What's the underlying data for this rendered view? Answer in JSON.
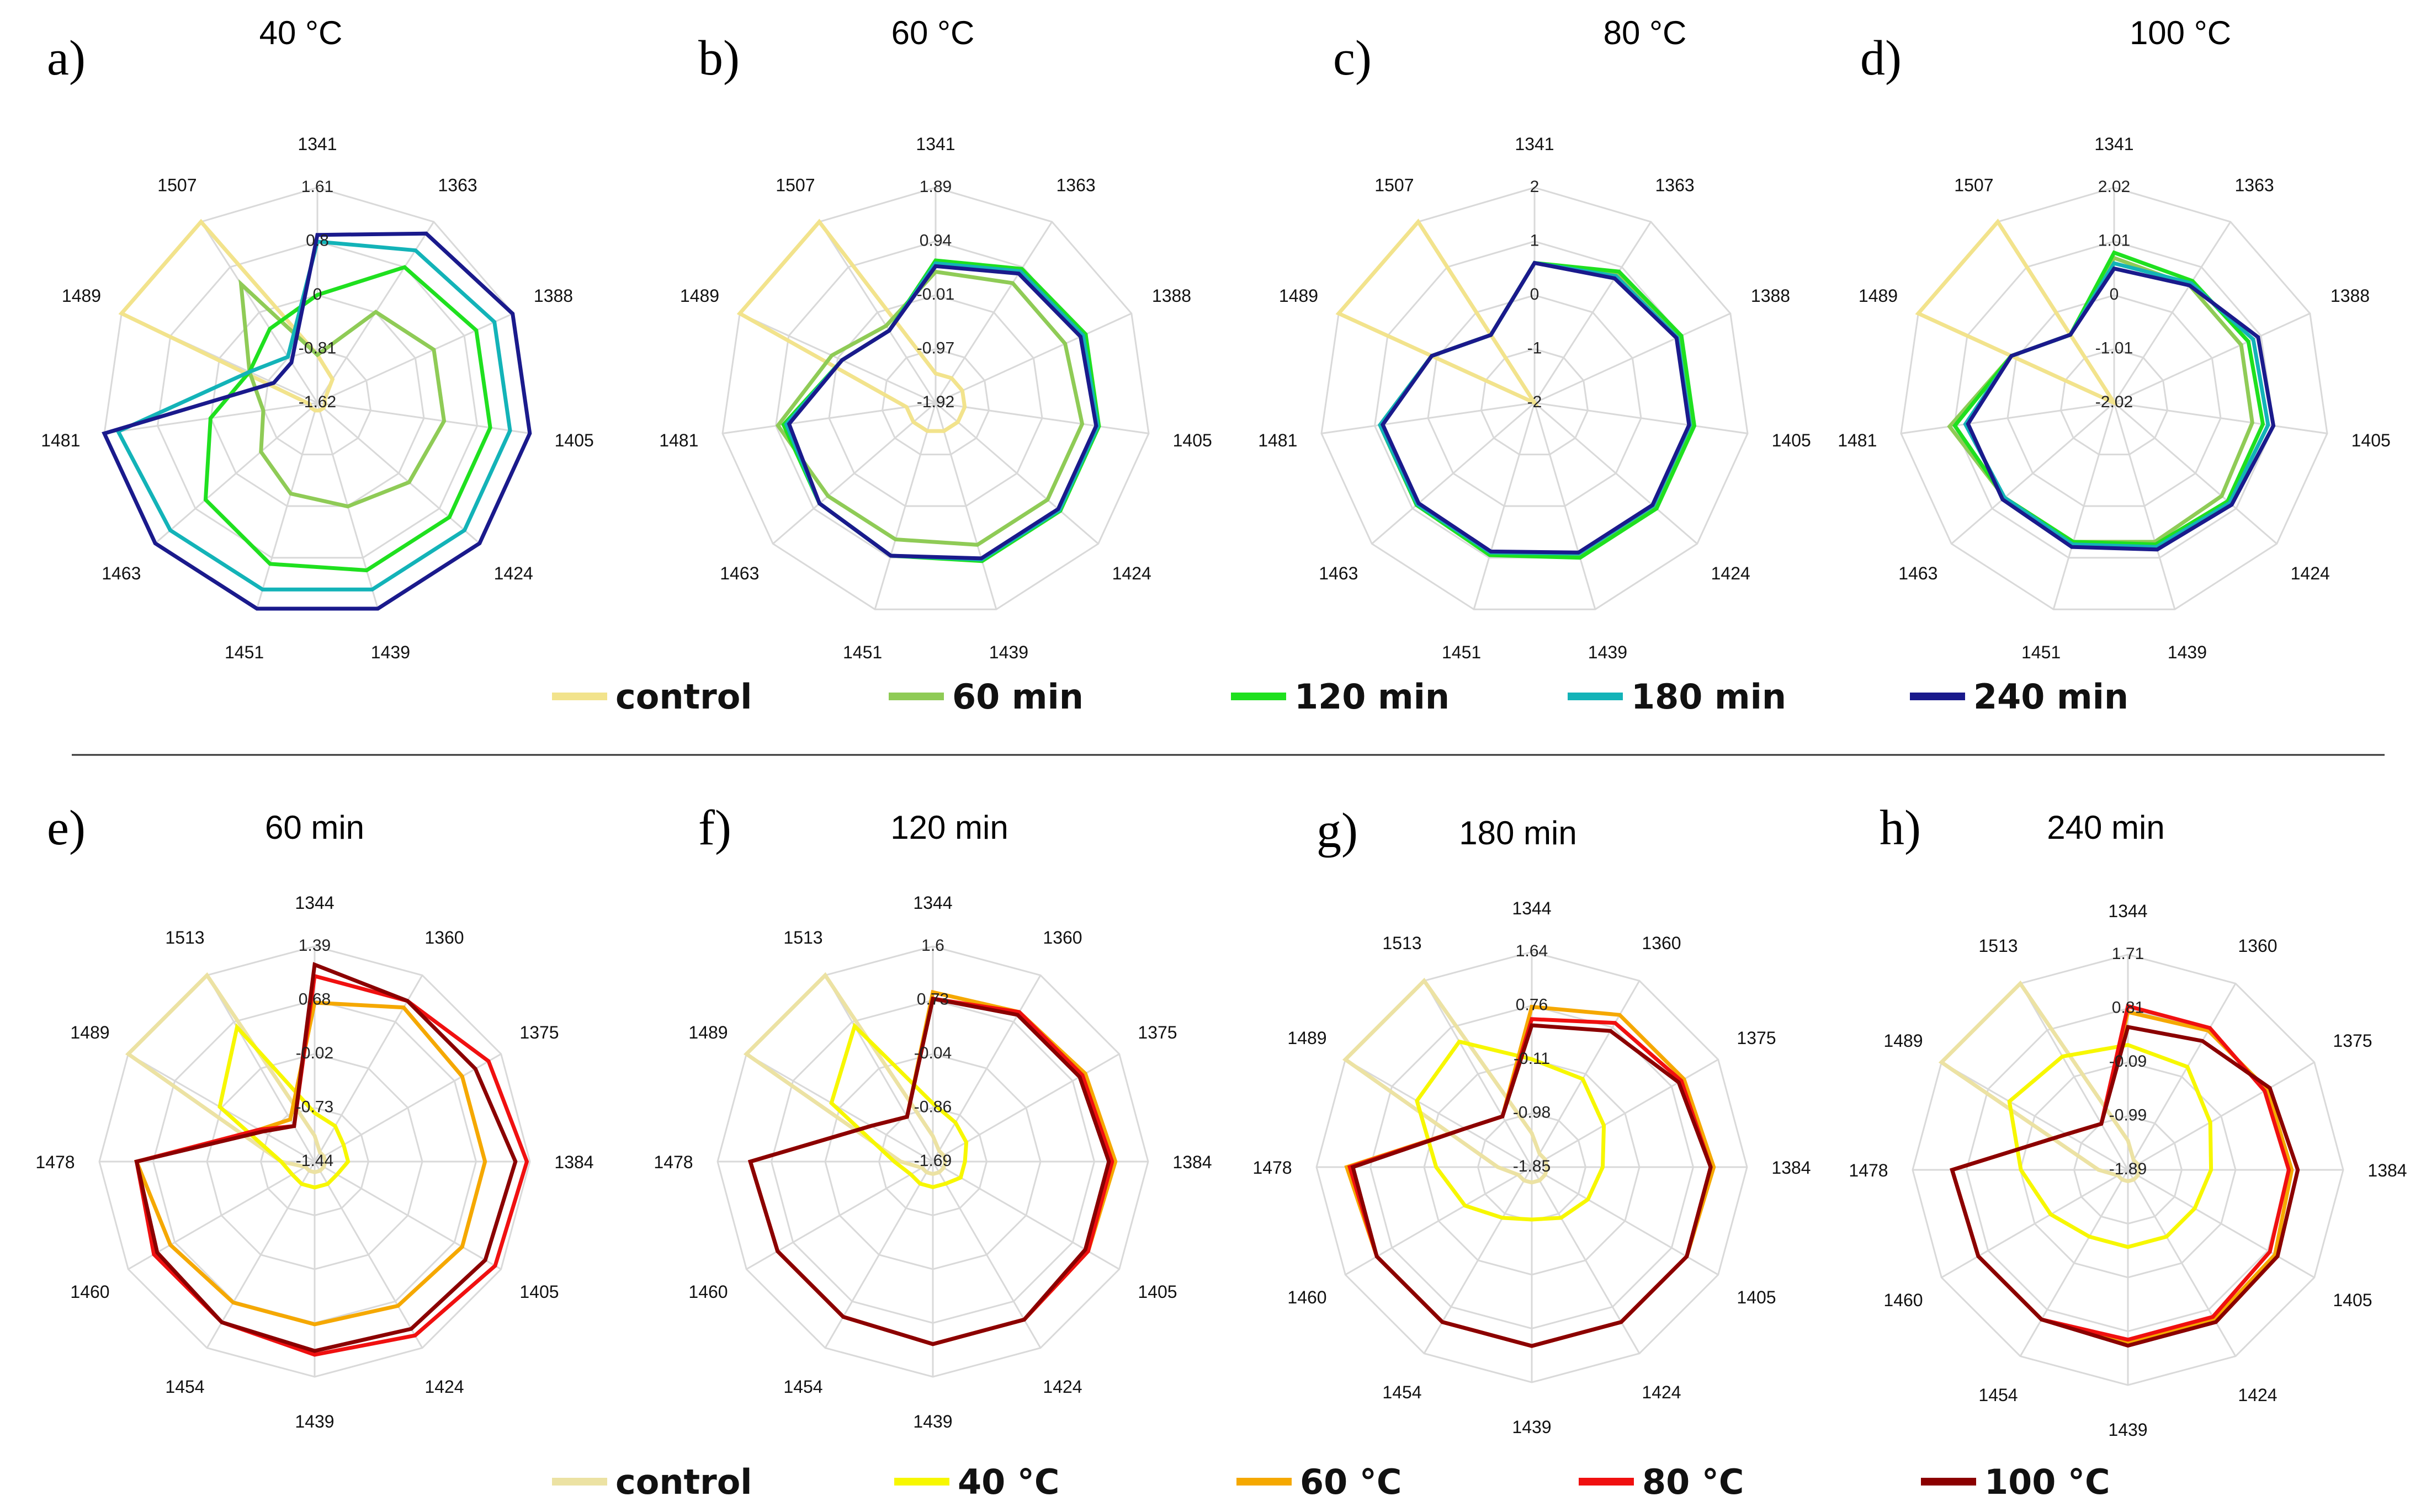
{
  "colors": {
    "grid": "#d9d9d9",
    "top_series": [
      "#f2e38c",
      "#8fcb56",
      "#1fe01f",
      "#13b3b8",
      "#1a1a8c"
    ],
    "bottom_series": [
      "#ece2a3",
      "#f7f700",
      "#f5a800",
      "#f01010",
      "#8b0000"
    ]
  },
  "legend_top": [
    "control",
    "60 min",
    "120 min",
    "180 min",
    "240 min"
  ],
  "legend_bottom": [
    "control",
    "40 °C",
    "60 °C",
    "80 °C",
    "100 °C"
  ],
  "chart_data": [
    {
      "type": "radar",
      "panel": "a)",
      "title": "40 °C",
      "categories": [
        "1341",
        "1363",
        "1388",
        "1405",
        "1424",
        "1439",
        "1451",
        "1463",
        "1481",
        "1489",
        "1507"
      ],
      "ticks": [
        "1.61",
        "0.8",
        "0",
        "-0.81",
        "-1.62"
      ],
      "ylim": [
        -1.62,
        1.61
      ],
      "series": [
        {
          "name": "control",
          "values": [
            -0.9,
            -1.2,
            -1.5,
            -1.5,
            -1.5,
            -1.5,
            -1.5,
            -1.5,
            -1.5,
            1.61,
            1.61
          ]
        },
        {
          "name": "60 min",
          "values": [
            -0.9,
            0.0,
            0.3,
            0.3,
            0.2,
            0.0,
            -0.2,
            -0.5,
            -0.8,
            -0.5,
            0.5
          ]
        },
        {
          "name": "120 min",
          "values": [
            0.0,
            0.8,
            1.0,
            1.0,
            1.0,
            1.0,
            0.9,
            0.6,
            0.0,
            -0.5,
            -0.3
          ]
        },
        {
          "name": "180 min",
          "values": [
            0.8,
            1.1,
            1.3,
            1.3,
            1.3,
            1.3,
            1.3,
            1.3,
            1.4,
            -0.5,
            -0.8
          ]
        },
        {
          "name": "240 min",
          "values": [
            0.9,
            1.4,
            1.6,
            1.6,
            1.6,
            1.6,
            1.6,
            1.6,
            1.61,
            -0.9,
            -0.9
          ]
        }
      ]
    },
    {
      "type": "radar",
      "panel": "b)",
      "title": "60 °C",
      "categories": [
        "1341",
        "1363",
        "1388",
        "1405",
        "1424",
        "1439",
        "1451",
        "1463",
        "1481",
        "1489",
        "1507"
      ],
      "ticks": [
        "1.89",
        "0.94",
        "-0.01",
        "-0.97",
        "-1.92"
      ],
      "ylim": [
        -1.92,
        1.89
      ],
      "series": [
        {
          "name": "control",
          "values": [
            -1.4,
            -1.4,
            -1.4,
            -1.4,
            -1.4,
            -1.4,
            -1.4,
            -1.4,
            -1.4,
            1.89,
            1.89
          ]
        },
        {
          "name": "60 min",
          "values": [
            0.4,
            0.6,
            0.6,
            0.7,
            0.7,
            0.7,
            0.6,
            0.6,
            0.9,
            0.1,
            -0.3
          ]
        },
        {
          "name": "120 min",
          "values": [
            0.6,
            0.9,
            1.0,
            1.0,
            1.0,
            1.0,
            0.9,
            0.8,
            0.8,
            -0.1,
            -0.4
          ]
        },
        {
          "name": "180 min",
          "values": [
            0.55,
            0.85,
            0.95,
            0.98,
            0.98,
            0.97,
            0.9,
            0.8,
            0.75,
            -0.1,
            -0.4
          ]
        },
        {
          "name": "240 min",
          "values": [
            0.5,
            0.8,
            0.9,
            0.95,
            0.95,
            0.95,
            0.9,
            0.8,
            0.7,
            -0.1,
            -0.4
          ]
        }
      ]
    },
    {
      "type": "radar",
      "panel": "c)",
      "title": "80 °C",
      "categories": [
        "1341",
        "1363",
        "1388",
        "1405",
        "1424",
        "1439",
        "1451",
        "1463",
        "1481",
        "1489",
        "1507"
      ],
      "ticks": [
        "2",
        "1",
        "0",
        "-1",
        "-2"
      ],
      "ylim": [
        -2,
        2
      ],
      "series": [
        {
          "name": "control",
          "values": [
            -2,
            -2,
            -2,
            -2,
            -2,
            -2,
            -2,
            -2,
            -2,
            2,
            2
          ]
        },
        {
          "name": "60 min",
          "values": [
            0.6,
            0.85,
            0.95,
            0.95,
            0.95,
            0.95,
            0.9,
            0.9,
            0.9,
            0.1,
            -0.5
          ]
        },
        {
          "name": "120 min",
          "values": [
            0.6,
            0.9,
            1.0,
            1.0,
            1.0,
            1.0,
            0.95,
            0.9,
            0.9,
            0.1,
            -0.5
          ]
        },
        {
          "name": "180 min",
          "values": [
            0.6,
            0.8,
            0.92,
            0.92,
            0.92,
            0.92,
            0.9,
            0.88,
            0.9,
            0.1,
            -0.5
          ]
        },
        {
          "name": "240 min",
          "values": [
            0.6,
            0.75,
            0.9,
            0.9,
            0.9,
            0.9,
            0.88,
            0.85,
            0.85,
            0.1,
            -0.5
          ]
        }
      ]
    },
    {
      "type": "radar",
      "panel": "d)",
      "title": "100 °C",
      "categories": [
        "1341",
        "1363",
        "1388",
        "1405",
        "1424",
        "1439",
        "1451",
        "1463",
        "1481",
        "1489",
        "1507"
      ],
      "ticks": [
        "2.02",
        "1.01",
        "0",
        "-1.01",
        "-2.02"
      ],
      "ylim": [
        -2.02,
        2.02
      ],
      "series": [
        {
          "name": "control",
          "values": [
            -2.02,
            -2.02,
            -2.02,
            -2.02,
            -2.02,
            -2.02,
            -2.02,
            -2.02,
            -2.02,
            2.02,
            2.02
          ]
        },
        {
          "name": "60 min",
          "values": [
            0.7,
            0.6,
            0.6,
            0.6,
            0.65,
            0.7,
            0.7,
            0.7,
            1.1,
            0.1,
            -0.5
          ]
        },
        {
          "name": "120 min",
          "values": [
            0.8,
            0.7,
            0.75,
            0.8,
            0.8,
            0.75,
            0.7,
            0.7,
            1.0,
            0.1,
            -0.5
          ]
        },
        {
          "name": "180 min",
          "values": [
            0.6,
            0.65,
            0.85,
            0.9,
            0.85,
            0.8,
            0.75,
            0.7,
            0.8,
            0.1,
            -0.5
          ]
        },
        {
          "name": "240 min",
          "values": [
            0.5,
            0.6,
            0.95,
            1.0,
            0.9,
            0.85,
            0.8,
            0.75,
            0.75,
            0.1,
            -0.5
          ]
        }
      ]
    },
    {
      "type": "radar",
      "panel": "e)",
      "title": "60 min",
      "categories": [
        "1344",
        "1360",
        "1375",
        "1384",
        "1405",
        "1424",
        "1439",
        "1454",
        "1460",
        "1478",
        "1489",
        "1513"
      ],
      "ticks": [
        "1.39",
        "0.68",
        "-0.02",
        "-0.73",
        "-1.44"
      ],
      "ylim": [
        -1.44,
        1.39
      ],
      "series": [
        {
          "name": "control",
          "values": [
            -1.1,
            -1.3,
            -1.3,
            -1.3,
            -1.3,
            -1.3,
            -1.3,
            -1.3,
            -1.3,
            -1.0,
            1.39,
            1.39
          ]
        },
        {
          "name": "40 °C",
          "values": [
            -0.8,
            -0.9,
            -1.0,
            -1.0,
            -1.1,
            -1.1,
            -1.1,
            -1.1,
            -1.1,
            -1.0,
            0.0,
            0.6
          ]
        },
        {
          "name": "60 °C",
          "values": [
            0.65,
            0.9,
            0.8,
            0.8,
            0.8,
            0.75,
            0.7,
            0.7,
            0.75,
            0.9,
            -0.6,
            -0.8
          ]
        },
        {
          "name": "80 °C",
          "values": [
            1.0,
            1.0,
            1.2,
            1.35,
            1.3,
            1.2,
            1.1,
            1.0,
            1.0,
            0.9,
            -0.6,
            -0.9
          ]
        },
        {
          "name": "100 °C",
          "values": [
            1.15,
            1.0,
            1.0,
            1.2,
            1.15,
            1.1,
            1.05,
            1.0,
            0.95,
            0.9,
            -0.65,
            -0.9
          ]
        }
      ]
    },
    {
      "type": "radar",
      "panel": "f)",
      "title": "120 min",
      "categories": [
        "1344",
        "1360",
        "1375",
        "1384",
        "1405",
        "1424",
        "1439",
        "1454",
        "1460",
        "1478",
        "1489",
        "1513"
      ],
      "ticks": [
        "1.6",
        "0.73",
        "-0.04",
        "-0.86",
        "-1.69"
      ],
      "ylim": [
        -1.69,
        1.6
      ],
      "series": [
        {
          "name": "control",
          "values": [
            -1.3,
            -1.5,
            -1.5,
            -1.5,
            -1.5,
            -1.5,
            -1.5,
            -1.5,
            -1.5,
            -1.2,
            1.6,
            1.6
          ]
        },
        {
          "name": "40 °C",
          "values": [
            -0.8,
            -1.0,
            -1.1,
            -1.2,
            -1.2,
            -1.3,
            -1.3,
            -1.3,
            -1.3,
            -1.1,
            0.1,
            0.7
          ]
        },
        {
          "name": "60 °C",
          "values": [
            0.9,
            0.95,
            1.0,
            1.1,
            1.05,
            1.1,
            1.1,
            1.05,
            1.05,
            1.1,
            -0.6,
            -0.9
          ]
        },
        {
          "name": "80 °C",
          "values": [
            0.8,
            0.95,
            0.95,
            1.05,
            1.05,
            1.1,
            1.1,
            1.05,
            1.05,
            1.1,
            -0.6,
            -0.9
          ]
        },
        {
          "name": "100 °C",
          "values": [
            0.8,
            0.9,
            0.9,
            1.0,
            1.0,
            1.1,
            1.1,
            1.05,
            1.05,
            1.1,
            -0.6,
            -0.9
          ]
        }
      ]
    },
    {
      "type": "radar",
      "panel": "g)",
      "title": "180 min",
      "categories": [
        "1344",
        "1360",
        "1375",
        "1384",
        "1405",
        "1424",
        "1439",
        "1454",
        "1460",
        "1478",
        "1489",
        "1513"
      ],
      "ticks": [
        "1.64",
        "0.76",
        "-0.11",
        "-0.98",
        "-1.85"
      ],
      "ylim": [
        -1.85,
        1.64
      ],
      "series": [
        {
          "name": "control",
          "values": [
            -1.3,
            -1.6,
            -1.6,
            -1.6,
            -1.6,
            -1.6,
            -1.6,
            -1.6,
            -1.6,
            -1.3,
            1.64,
            1.64
          ]
        },
        {
          "name": "40 °C",
          "values": [
            -0.1,
            -0.2,
            -0.5,
            -0.7,
            -0.8,
            -0.9,
            -1.0,
            -0.9,
            -0.6,
            -0.3,
            0.3,
            0.5
          ]
        },
        {
          "name": "60 °C",
          "values": [
            0.75,
            1.0,
            1.0,
            1.1,
            1.05,
            1.05,
            1.05,
            1.05,
            1.05,
            1.15,
            -0.6,
            -0.9
          ]
        },
        {
          "name": "80 °C",
          "values": [
            0.55,
            0.85,
            0.95,
            1.05,
            1.05,
            1.05,
            1.05,
            1.05,
            1.05,
            1.1,
            -0.6,
            -0.9
          ]
        },
        {
          "name": "100 °C",
          "values": [
            0.45,
            0.7,
            0.9,
            1.05,
            1.05,
            1.05,
            1.05,
            1.05,
            1.05,
            1.05,
            -0.6,
            -0.9
          ]
        }
      ]
    },
    {
      "type": "radar",
      "panel": "h)",
      "title": "240 min",
      "categories": [
        "1344",
        "1360",
        "1375",
        "1384",
        "1405",
        "1424",
        "1439",
        "1454",
        "1460",
        "1478",
        "1489",
        "1513"
      ],
      "ticks": [
        "1.71",
        "0.81",
        "-0.09",
        "-0.99",
        "-1.89"
      ],
      "ylim": [
        -1.89,
        1.71
      ],
      "series": [
        {
          "name": "control",
          "values": [
            -1.4,
            -1.7,
            -1.7,
            -1.7,
            -1.7,
            -1.7,
            -1.7,
            -1.7,
            -1.7,
            -1.4,
            1.71,
            1.71
          ]
        },
        {
          "name": "40 °C",
          "values": [
            0.2,
            0.1,
            -0.3,
            -0.5,
            -0.6,
            -0.6,
            -0.6,
            -0.6,
            -0.4,
            -0.1,
            0.4,
            0.3
          ]
        },
        {
          "name": "60 °C",
          "values": [
            0.75,
            0.8,
            0.8,
            0.85,
            0.95,
            1.0,
            1.0,
            1.0,
            1.0,
            1.05,
            -0.7,
            -1.0
          ]
        },
        {
          "name": "80 °C",
          "values": [
            0.85,
            0.85,
            0.75,
            0.8,
            0.85,
            0.95,
            0.95,
            1.0,
            1.0,
            1.05,
            -0.7,
            -1.0
          ]
        },
        {
          "name": "100 °C",
          "values": [
            0.5,
            0.6,
            0.85,
            0.95,
            1.0,
            1.05,
            1.05,
            1.0,
            1.0,
            1.05,
            -0.7,
            -1.0
          ]
        }
      ]
    }
  ]
}
